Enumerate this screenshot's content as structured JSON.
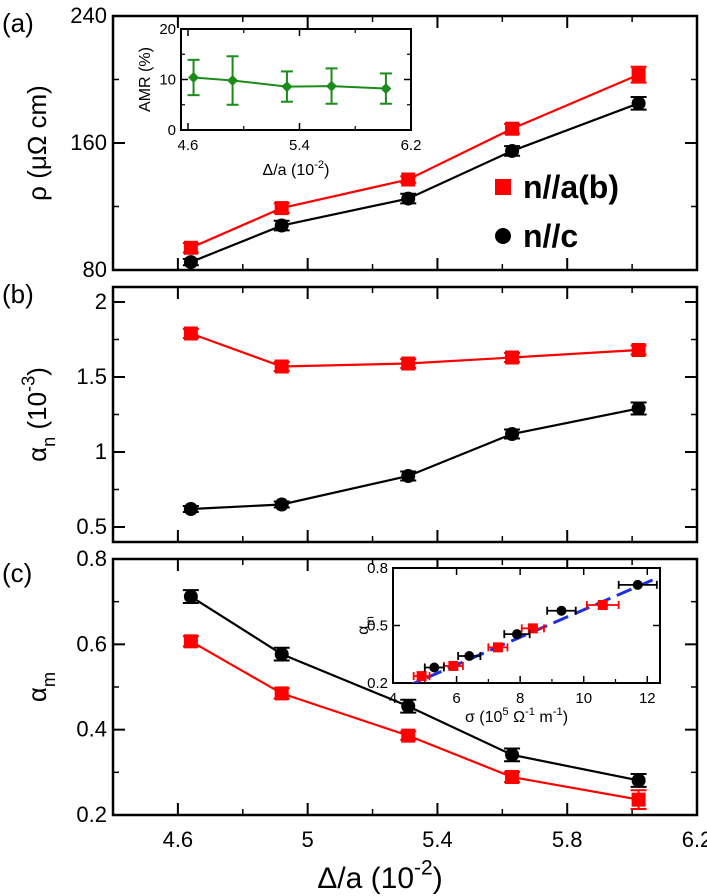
{
  "chart_data": [
    {
      "panel": "(a)",
      "type": "line",
      "ylabel": "ρ (μΩ cm)",
      "xlabel": "",
      "xlim": [
        4.4,
        6.2
      ],
      "ylim": [
        80,
        240
      ],
      "yticks": [
        80,
        160,
        240
      ],
      "series": [
        {
          "name": "n//a(b)",
          "marker": "square",
          "color": "#ff0000",
          "x": [
            4.64,
            4.92,
            5.31,
            5.63,
            6.02
          ],
          "y": [
            94,
            119,
            137,
            169,
            203
          ],
          "err": [
            3,
            3,
            2,
            3,
            5
          ]
        },
        {
          "name": "n//c",
          "marker": "circle",
          "color": "#000000",
          "x": [
            4.64,
            4.92,
            5.31,
            5.63,
            6.02
          ],
          "y": [
            85,
            108,
            125,
            155,
            185
          ],
          "err": [
            2,
            3,
            3,
            3,
            4
          ]
        }
      ],
      "legend": [
        "n//a(b)",
        "n//c"
      ],
      "inset": {
        "type": "line",
        "ylabel": "AMR (%)",
        "xlabel": "Δ/a (10⁻²)",
        "xlim": [
          4.55,
          6.2
        ],
        "ylim": [
          0,
          20
        ],
        "xticks": [
          4.6,
          5.4,
          6.2
        ],
        "yticks": [
          0,
          10,
          20
        ],
        "series": [
          {
            "name": "AMR",
            "marker": "diamond",
            "color": "#1a8c1a",
            "x": [
              4.64,
              4.92,
              5.31,
              5.63,
              6.02
            ],
            "y": [
              10.4,
              9.8,
              8.6,
              8.7,
              8.2
            ],
            "err": [
              3.5,
              4.8,
              3.0,
              3.5,
              3.0
            ]
          }
        ]
      }
    },
    {
      "panel": "(b)",
      "type": "line",
      "ylabel": "αn (10⁻³)",
      "xlabel": "",
      "xlim": [
        4.4,
        6.2
      ],
      "ylim": [
        0.4,
        2.1
      ],
      "yticks": [
        0.5,
        1.0,
        1.5,
        2.0
      ],
      "series": [
        {
          "name": "n//a(b)",
          "marker": "square",
          "color": "#ff0000",
          "x": [
            4.64,
            4.92,
            5.31,
            5.63,
            6.02
          ],
          "y": [
            1.79,
            1.57,
            1.59,
            1.63,
            1.68
          ],
          "err": [
            0.03,
            0.03,
            0.03,
            0.03,
            0.03
          ]
        },
        {
          "name": "n//c",
          "marker": "circle",
          "color": "#000000",
          "x": [
            4.64,
            4.92,
            5.31,
            5.63,
            6.02
          ],
          "y": [
            0.62,
            0.65,
            0.84,
            1.12,
            1.29
          ],
          "err": [
            0.02,
            0.02,
            0.03,
            0.03,
            0.04
          ]
        }
      ]
    },
    {
      "panel": "(c)",
      "type": "line",
      "ylabel": "αm",
      "xlabel": "Δ/a (10⁻²)",
      "xlim": [
        4.4,
        6.2
      ],
      "ylim": [
        0.2,
        0.8
      ],
      "xticks": [
        4.6,
        5.0,
        5.4,
        5.8,
        6.2
      ],
      "yticks": [
        0.2,
        0.4,
        0.6,
        0.8
      ],
      "series": [
        {
          "name": "n//a(b)",
          "marker": "square",
          "color": "#ff0000",
          "x": [
            4.64,
            4.92,
            5.31,
            5.63,
            6.02
          ],
          "y": [
            0.607,
            0.485,
            0.386,
            0.289,
            0.236
          ],
          "err": [
            0.012,
            0.012,
            0.01,
            0.012,
            0.022
          ]
        },
        {
          "name": "n//c",
          "marker": "circle",
          "color": "#000000",
          "x": [
            4.64,
            4.92,
            5.31,
            5.63,
            6.02
          ],
          "y": [
            0.712,
            0.577,
            0.455,
            0.341,
            0.281
          ],
          "err": [
            0.015,
            0.015,
            0.015,
            0.015,
            0.015
          ]
        }
      ],
      "inset": {
        "type": "scatter",
        "ylabel": "αm",
        "xlabel": "σ (10⁵ Ω⁻¹ m⁻¹)",
        "xlim": [
          4,
          12.4
        ],
        "ylim": [
          0.2,
          0.8
        ],
        "xticks": [
          4,
          6,
          8,
          10,
          12
        ],
        "yticks": [
          0.2,
          0.5,
          0.8
        ],
        "series": [
          {
            "name": "n//a(b)",
            "marker": "square",
            "color": "#ff0000",
            "x": [
              4.9,
              5.9,
              7.3,
              8.4,
              10.6
            ],
            "y": [
              0.236,
              0.289,
              0.386,
              0.485,
              0.607
            ],
            "err": [
              0.25,
              0.3,
              0.3,
              0.35,
              0.5
            ]
          },
          {
            "name": "n//c",
            "marker": "circle",
            "color": "#000000",
            "x": [
              5.3,
              6.4,
              7.9,
              9.3,
              11.7
            ],
            "y": [
              0.281,
              0.341,
              0.455,
              0.577,
              0.712
            ],
            "err": [
              0.3,
              0.35,
              0.4,
              0.45,
              0.6
            ]
          }
        ],
        "fit": {
          "name": "linear fit",
          "color": "#1f2ee0",
          "x": [
            4.4,
            12.2
          ],
          "y": [
            0.18,
            0.74
          ]
        }
      }
    }
  ]
}
